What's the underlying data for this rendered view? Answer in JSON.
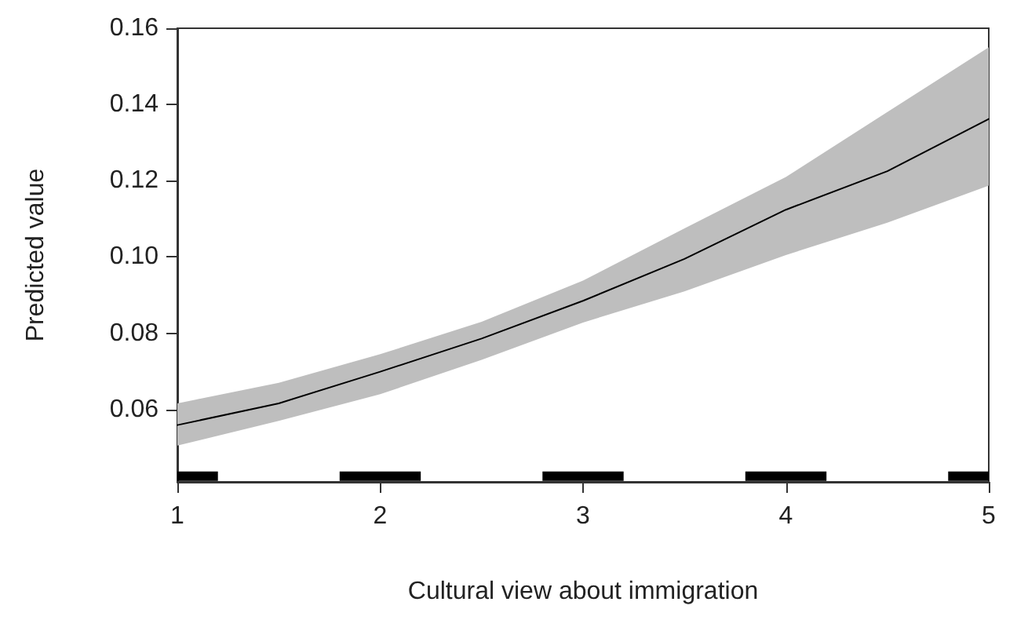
{
  "chart_data": {
    "type": "line",
    "xlabel": "Cultural view about immigration",
    "ylabel": "Predicted value",
    "x": [
      1,
      1.5,
      2,
      2.5,
      3,
      3.5,
      4,
      4.5,
      5
    ],
    "series": [
      {
        "color": "#000000",
        "values": [
          0.0559,
          0.0616,
          0.0699,
          0.0786,
          0.0885,
          0.0995,
          0.1124,
          0.1225,
          0.1362
        ],
        "lower": [
          0.0505,
          0.057,
          0.064,
          0.073,
          0.0828,
          0.091,
          0.1005,
          0.109,
          0.1187
        ],
        "upper": [
          0.0616,
          0.067,
          0.0745,
          0.083,
          0.0938,
          0.1075,
          0.121,
          0.138,
          0.155
        ]
      },
      {
        "color": "#000000",
        "x": [
          1,
          1.2,
          1.5,
          1.8,
          2.2,
          2.5,
          2.8,
          3.2,
          3.5,
          3.8,
          4.2,
          4.5,
          4.8,
          5
        ],
        "values": [
          0.0425,
          0.0425,
          null,
          0.0425,
          0.0425,
          null,
          0.0425,
          0.0425,
          null,
          0.0425,
          0.0425,
          null,
          0.0425,
          0.0425
        ]
      }
    ],
    "xlim": [
      1,
      5
    ],
    "xticks": [
      1,
      2,
      3,
      4,
      5
    ],
    "ylim": [
      0.041,
      0.16
    ],
    "yticks": [
      0.06,
      0.08,
      {
        "value": 0.1,
        "label": "0.10"
      },
      0.12,
      0.14,
      0.16
    ],
    "grid": false,
    "marker": "none",
    "line_style": "solid"
  }
}
